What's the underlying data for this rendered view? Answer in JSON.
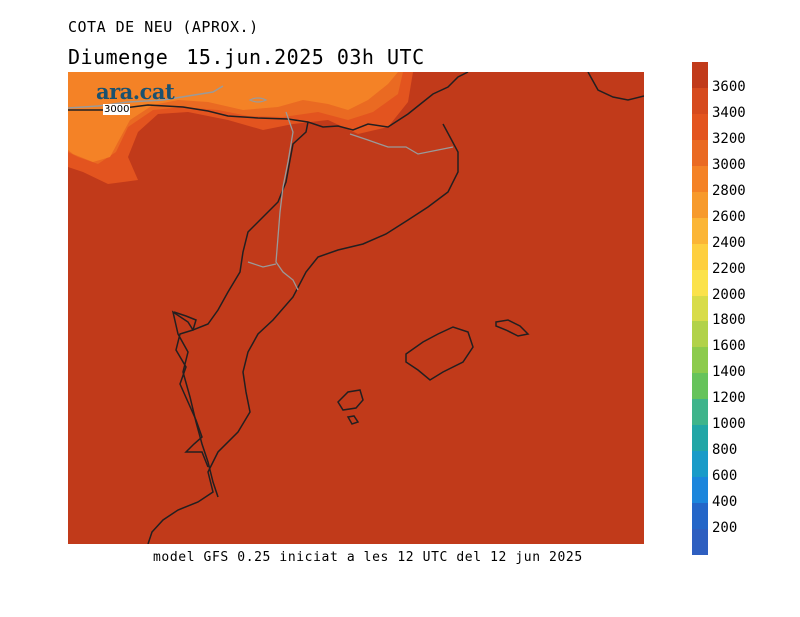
{
  "header": {
    "title": "COTA DE NEU (APROX.)",
    "day": "Diumenge",
    "datetime": "15.jun.2025 03h UTC"
  },
  "footer": {
    "model_text": "model GFS 0.25 iniciat a les 12 UTC del 12 jun 2025"
  },
  "logo": {
    "text": "ara.cat",
    "color": "#1a5170"
  },
  "map": {
    "contour_label": "3000",
    "fill_colors": {
      "above_3600": "#c13a1a",
      "band_3400_3600": "#e3541f",
      "band_3200_3400": "#ea6a22",
      "band_3000_3200": "#f48226"
    },
    "border_color": "#231f20",
    "internal_border_color": "#999999"
  },
  "colorbar": {
    "labels": [
      "3600",
      "3400",
      "3200",
      "3000",
      "2800",
      "2600",
      "2400",
      "2200",
      "2000",
      "1800",
      "1600",
      "1400",
      "1200",
      "1000",
      "800",
      "600",
      "400",
      "200"
    ],
    "colors": [
      "#c13a1a",
      "#d64a1e",
      "#e3541f",
      "#ea6a22",
      "#f48226",
      "#f79a2c",
      "#fbb536",
      "#fecf3f",
      "#fbe24a",
      "#d8dc48",
      "#b1d249",
      "#8ccb4c",
      "#66c35b",
      "#3fb48b",
      "#22a6a6",
      "#1a9bc8",
      "#1c86dc",
      "#2466c8",
      "#2e5fc0"
    ]
  }
}
